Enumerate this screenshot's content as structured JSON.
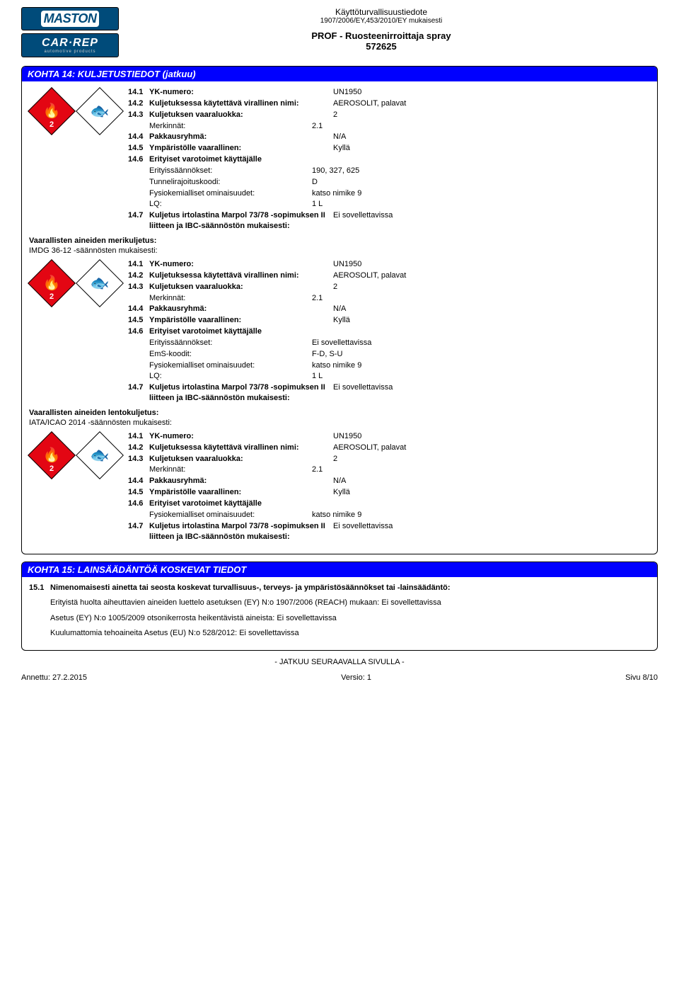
{
  "header": {
    "brand1": "MASTON",
    "brand2": "CAR·REP",
    "brand_sub": "automotive products",
    "title1": "Käyttöturvallisuustiedote",
    "title2": "1907/2006/EY,453/2010/EY mukaisesti",
    "product1": "PROF - Ruosteenirroittaja spray",
    "product2": "572625"
  },
  "section14": {
    "title": "KOHTA 14: KULJETUSTIEDOT (jatkuu)",
    "blocks": [
      {
        "rows": [
          {
            "num": "14.1",
            "lbl": "YK-numero:",
            "val": "UN1950"
          },
          {
            "num": "14.2",
            "lbl": "Kuljetuksessa käytettävä virallinen nimi:",
            "val": "AEROSOLIT, palavat"
          },
          {
            "num": "14.3",
            "lbl": "Kuljetuksen vaaraluokka:",
            "val": "2"
          },
          {
            "num": "",
            "lbl": "Merkinnät:",
            "val": "2.1",
            "plain": true
          },
          {
            "num": "14.4",
            "lbl": "Pakkausryhmä:",
            "val": "N/A"
          },
          {
            "num": "14.5",
            "lbl": "Ympäristölle vaarallinen:",
            "val": "Kyllä"
          },
          {
            "num": "14.6",
            "lbl": "Erityiset varotoimet käyttäjälle",
            "val": ""
          },
          {
            "num": "",
            "lbl": "Erityissäännökset:",
            "val": "190, 327, 625",
            "plain": true
          },
          {
            "num": "",
            "lbl": "Tunnelirajoituskoodi:",
            "val": "D",
            "plain": true
          },
          {
            "num": "",
            "lbl": "Fysiokemialliset ominaisuudet:",
            "val": "katso nimike 9",
            "plain": true
          },
          {
            "num": "",
            "lbl": "LQ:",
            "val": "1 L",
            "plain": true
          },
          {
            "num": "14.7",
            "lbl": "Kuljetus irtolastina Marpol 73/78 -sopimuksen II liitteen ja IBC-säännöstön mukaisesti:",
            "val": "Ei sovellettavissa"
          }
        ],
        "footer_heading": "Vaarallisten aineiden merikuljetus:",
        "footer_sub": "IMDG 36-12 -säännösten mukaisesti:"
      },
      {
        "rows": [
          {
            "num": "14.1",
            "lbl": "YK-numero:",
            "val": "UN1950"
          },
          {
            "num": "14.2",
            "lbl": "Kuljetuksessa käytettävä virallinen nimi:",
            "val": "AEROSOLIT, palavat"
          },
          {
            "num": "14.3",
            "lbl": "Kuljetuksen vaaraluokka:",
            "val": "2"
          },
          {
            "num": "",
            "lbl": "Merkinnät:",
            "val": "2.1",
            "plain": true
          },
          {
            "num": "14.4",
            "lbl": "Pakkausryhmä:",
            "val": "N/A"
          },
          {
            "num": "14.5",
            "lbl": "Ympäristölle vaarallinen:",
            "val": "Kyllä"
          },
          {
            "num": "14.6",
            "lbl": "Erityiset varotoimet käyttäjälle",
            "val": ""
          },
          {
            "num": "",
            "lbl": "Erityissäännökset:",
            "val": "Ei sovellettavissa",
            "plain": true
          },
          {
            "num": "",
            "lbl": "EmS-koodit:",
            "val": "F-D, S-U",
            "plain": true
          },
          {
            "num": "",
            "lbl": "Fysiokemialliset ominaisuudet:",
            "val": "katso nimike 9",
            "plain": true
          },
          {
            "num": "",
            "lbl": "LQ:",
            "val": "1 L",
            "plain": true
          },
          {
            "num": "14.7",
            "lbl": "Kuljetus irtolastina Marpol 73/78 -sopimuksen II liitteen ja IBC-säännöstön mukaisesti:",
            "val": "Ei sovellettavissa"
          }
        ],
        "footer_heading": "Vaarallisten aineiden lentokuljetus:",
        "footer_sub": "IATA/ICAO 2014 -säännösten mukaisesti:"
      },
      {
        "rows": [
          {
            "num": "14.1",
            "lbl": "YK-numero:",
            "val": "UN1950"
          },
          {
            "num": "14.2",
            "lbl": "Kuljetuksessa käytettävä virallinen nimi:",
            "val": "AEROSOLIT, palavat"
          },
          {
            "num": "14.3",
            "lbl": "Kuljetuksen vaaraluokka:",
            "val": "2"
          },
          {
            "num": "",
            "lbl": "Merkinnät:",
            "val": "2.1",
            "plain": true
          },
          {
            "num": "14.4",
            "lbl": "Pakkausryhmä:",
            "val": "N/A"
          },
          {
            "num": "14.5",
            "lbl": "Ympäristölle vaarallinen:",
            "val": "Kyllä"
          },
          {
            "num": "14.6",
            "lbl": "Erityiset varotoimet käyttäjälle",
            "val": ""
          },
          {
            "num": "",
            "lbl": "Fysiokemialliset ominaisuudet:",
            "val": "katso nimike 9",
            "plain": true
          },
          {
            "num": "14.7",
            "lbl": "Kuljetus irtolastina Marpol 73/78 -sopimuksen II liitteen ja IBC-säännöstön mukaisesti:",
            "val": "Ei sovellettavissa"
          }
        ]
      }
    ]
  },
  "section15": {
    "title": "KOHTA 15: LAINSÄÄDÄNTÖÄ KOSKEVAT TIEDOT",
    "heading_num": "15.1",
    "heading": "Nimenomaisesti ainetta tai seosta koskevat turvallisuus-, terveys- ja ympäristösäännökset tai -lainsäädäntö:",
    "lines": [
      "Erityistä huolta aiheuttavien aineiden luettelo asetuksen (EY) N:o 1907/2006 (REACH) mukaan: Ei sovellettavissa",
      "Asetus (EY) N:o 1005/2009 otsonikerrosta heikentävistä aineista: Ei sovellettavissa",
      "Kuulumattomia tehoaineita Asetus (EU) N:o 528/2012: Ei sovellettavissa"
    ]
  },
  "continuation": "- JATKUU SEURAAVALLA SIVULLA -",
  "footer": {
    "left": "Annettu: 27.2.2015",
    "center": "Versio: 1",
    "right": "Sivu 8/10"
  }
}
